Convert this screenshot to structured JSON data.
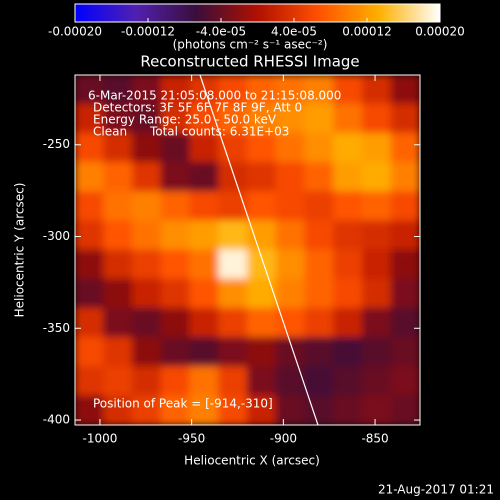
{
  "chart_data": {
    "type": "heatmap",
    "title": "Reconstructed RHESSI Image",
    "colorbar_label": "(photons cm⁻² s⁻¹ asec⁻²)",
    "xlabel": "Heliocentric X (arcsec)",
    "ylabel": "Heliocentric Y (arcsec)",
    "annotations": [
      "6-Mar-2015 21:05:08.000 to 21:15:08.000",
      "Detectors: 3F 5F 6F 7F 8F 9F, Att 0",
      "Energy Range: 25.0 - 50.0 keV",
      "Clean      Total counts: 6.31E+03"
    ],
    "peak_label": "Position of Peak = [-914,-310]",
    "footer": "21-Aug-2017 01:21",
    "xlim": [
      -1013.6,
      -825.5
    ],
    "ylim": [
      -402.7,
      -212
    ],
    "xticks": [
      -1000,
      -950,
      -900,
      -850
    ],
    "yticks": [
      -250,
      -300,
      -350,
      -400
    ],
    "clim": [
      -0.0002,
      0.0002
    ],
    "cticks": [
      {
        "value": -0.0002,
        "label": "-0.00020"
      },
      {
        "value": -0.00012,
        "label": "-0.00012"
      },
      {
        "value": -4e-05,
        "label": "-4.0e-05"
      },
      {
        "value": 4e-05,
        "label": "4.0e-05"
      },
      {
        "value": 0.00012,
        "label": "0.00012"
      },
      {
        "value": 0.0002,
        "label": "0.00020"
      }
    ],
    "colorscale": [
      "#0000ff",
      "#5020b0",
      "#3a0e3a",
      "#b01000",
      "#ff5000",
      "#ffb000",
      "#ffffff"
    ],
    "z": [
      [
        -4e-05,
        -5e-05,
        -3e-05,
        2e-05,
        4e-05,
        6e-05,
        8e-05,
        9e-05,
        0.0001,
        6e-05,
        3e-05,
        -2e-05
      ],
      [
        2e-05,
        -3e-05,
        -4e-05,
        3e-05,
        6e-05,
        8e-05,
        0.0001,
        0.00011,
        0.00012,
        9e-05,
        6e-05,
        3e-05
      ],
      [
        6e-05,
        3e-05,
        -2e-05,
        -4e-05,
        2e-05,
        5e-05,
        7e-05,
        9e-05,
        0.00011,
        0.00013,
        0.00012,
        8e-05
      ],
      [
        0.0001,
        8e-05,
        4e-05,
        -3e-05,
        -4e-05,
        3e-05,
        4e-05,
        6e-05,
        8e-05,
        0.00012,
        0.00013,
        0.0001
      ],
      [
        6e-05,
        9e-05,
        0.0001,
        8e-05,
        6e-05,
        5e-05,
        7e-05,
        6e-05,
        5e-05,
        7e-05,
        8e-05,
        6e-05
      ],
      [
        4e-05,
        7e-05,
        9e-05,
        0.00011,
        0.00012,
        0.00014,
        0.00012,
        9e-05,
        6e-05,
        4e-05,
        3e-05,
        2e-05
      ],
      [
        -2e-05,
        3e-05,
        5e-05,
        7e-05,
        9e-05,
        0.00019,
        0.00014,
        0.00011,
        8e-05,
        5e-05,
        2e-05,
        -2e-05
      ],
      [
        -4e-05,
        -2e-05,
        2e-05,
        4e-05,
        7e-05,
        0.00011,
        0.00013,
        0.0001,
        8e-05,
        6e-05,
        3e-05,
        -3e-05
      ],
      [
        3e-05,
        -3e-05,
        -4e-05,
        -2e-05,
        2e-05,
        5e-05,
        8e-05,
        7e-05,
        5e-05,
        2e-05,
        -3e-05,
        -5e-05
      ],
      [
        6e-05,
        4e-05,
        -2e-05,
        -4e-05,
        -5e-05,
        -3e-05,
        -2e-05,
        -4e-05,
        -5e-05,
        -6e-05,
        -5e-05,
        -4e-05
      ],
      [
        4e-05,
        5e-05,
        3e-05,
        6e-05,
        9e-05,
        5e-05,
        -3e-05,
        -5e-05,
        -6e-05,
        -5e-05,
        -4e-05,
        -3e-05
      ],
      [
        -2e-05,
        3e-05,
        5e-05,
        8e-05,
        0.0001,
        6e-05,
        2e-05,
        -4e-05,
        -5e-05,
        -4e-05,
        -3e-05,
        -4e-05
      ]
    ]
  }
}
